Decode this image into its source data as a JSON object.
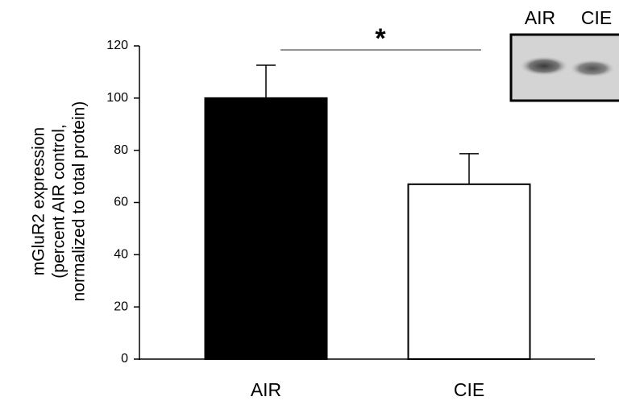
{
  "chart_data": {
    "type": "bar",
    "ylabel": [
      "mGluR2 expression",
      "(percent AIR control,",
      "normalized to total protein)"
    ],
    "categories": [
      "AIR",
      "CIE"
    ],
    "values": [
      100,
      67
    ],
    "errors": [
      12.6,
      11.7
    ],
    "colors": [
      "#000000",
      "#ffffff"
    ],
    "ylim": [
      0,
      120
    ],
    "yticks": [
      0,
      20,
      40,
      60,
      80,
      100,
      120
    ],
    "significance": "*",
    "inset_labels": [
      "AIR",
      "CIE"
    ]
  }
}
